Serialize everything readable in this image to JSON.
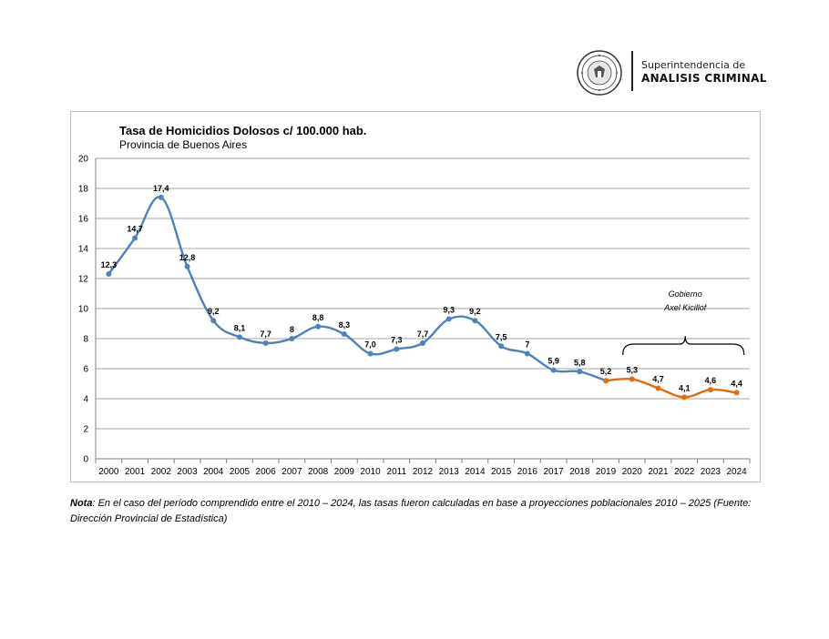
{
  "header": {
    "org_line1": "Superintendencia de",
    "org_line2": "ANALISIS CRIMINAL"
  },
  "note": {
    "label": "Nota",
    "text": ": En el caso del período comprendido entre el 2010 – 2024, las tasas fueron calculadas en base a proyecciones poblacionales 2010 – 2025 (Fuente: Dirección Provincial de Estadística)"
  },
  "chart_data": {
    "type": "line",
    "title": "Tasa de Homicidios Dolosos c/ 100.000 hab.",
    "subtitle": "Provincia de Buenos Aires",
    "xlabel": "",
    "ylabel": "",
    "ylim": [
      0,
      20
    ],
    "yticks": [
      "0",
      "2",
      "4",
      "6",
      "8",
      "10",
      "12",
      "14",
      "16",
      "18",
      "20"
    ],
    "grid": true,
    "categories": [
      "2000",
      "2001",
      "2002",
      "2003",
      "2004",
      "2005",
      "2006",
      "2007",
      "2008",
      "2009",
      "2010",
      "2011",
      "2012",
      "2013",
      "2014",
      "2015",
      "2016",
      "2017",
      "2018",
      "2019",
      "2020",
      "2021",
      "2022",
      "2023",
      "2024"
    ],
    "series": [
      {
        "color": "#4f81bd",
        "x": [
          "2000",
          "2001",
          "2002",
          "2003",
          "2004",
          "2005",
          "2006",
          "2007",
          "2008",
          "2009",
          "2010",
          "2011",
          "2012",
          "2013",
          "2014",
          "2015",
          "2016",
          "2017",
          "2018",
          "2019"
        ],
        "values": [
          12.3,
          14.7,
          17.4,
          12.8,
          9.2,
          8.1,
          7.7,
          8,
          8.8,
          8.3,
          7.0,
          7.3,
          7.7,
          9.3,
          9.2,
          7.5,
          7,
          5.9,
          5.8,
          5.2
        ],
        "labels": [
          "12,3",
          "14,7",
          "17,4",
          "12,8",
          "9,2",
          "8,1",
          "7,7",
          "8",
          "8,8",
          "8,3",
          "7,0",
          "7,3",
          "7,7",
          "9,3",
          "9,2",
          "7,5",
          "7",
          "5,9",
          "5,8",
          "5,2"
        ]
      },
      {
        "color": "#e46c0a",
        "x": [
          "2019",
          "2020",
          "2021",
          "2022",
          "2023",
          "2024"
        ],
        "values": [
          5.2,
          5.3,
          4.7,
          4.1,
          4.6,
          4.4
        ],
        "labels": [
          "",
          "5,3",
          "4,7",
          "4,1",
          "4,6",
          "4,4"
        ]
      }
    ],
    "annotation": {
      "text_line1": "Gobierno",
      "text_line2": "Axel Kicillof",
      "from": "2020",
      "to": "2024"
    }
  }
}
